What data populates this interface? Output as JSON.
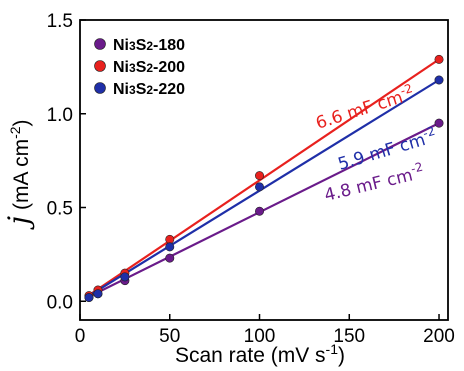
{
  "chart_data": {
    "type": "scatter",
    "x_range": [
      0,
      205
    ],
    "y_range": [
      -0.1,
      1.5
    ],
    "x_ticks": [
      "0",
      "50",
      "100",
      "150",
      "200"
    ],
    "y_ticks": [
      "0.0",
      "0.5",
      "1.0",
      "1.5"
    ],
    "xlabel": {
      "main": "Scan rate (mV s",
      "sup": "-1",
      "end": ")"
    },
    "ylabel": {
      "italic": "j",
      "main": " (mA cm",
      "sup": "-2",
      "end": ")"
    },
    "legend_position": "top-left",
    "series": [
      {
        "name": {
          "pre": "Ni",
          "sub1": "3",
          "mid": "S",
          "sub2": "2",
          "post": "-180"
        },
        "color": "#6a1b8a",
        "x": [
          5,
          10,
          25,
          50,
          100,
          200
        ],
        "y": [
          0.02,
          0.04,
          0.11,
          0.23,
          0.48,
          0.95
        ],
        "fit": [
          0.0,
          0.95
        ],
        "annotation": {
          "main": "4.8 mF cm",
          "sup": "-2"
        }
      },
      {
        "name": {
          "pre": "Ni",
          "sub1": "3",
          "mid": "S",
          "sub2": "2",
          "post": "-200"
        },
        "color": "#e8211e",
        "x": [
          5,
          10,
          25,
          50,
          100,
          200
        ],
        "y": [
          0.03,
          0.06,
          0.15,
          0.33,
          0.67,
          1.29
        ],
        "fit": [
          0.0,
          1.29
        ],
        "annotation": {
          "main": "6.6 mF cm",
          "sup": "-2"
        }
      },
      {
        "name": {
          "pre": "Ni",
          "sub1": "3",
          "mid": "S",
          "sub2": "2",
          "post": "-220"
        },
        "color": "#1f2fa8",
        "x": [
          5,
          10,
          25,
          50,
          100,
          200
        ],
        "y": [
          0.02,
          0.04,
          0.13,
          0.29,
          0.61,
          1.18
        ],
        "fit": [
          0.0,
          1.18
        ],
        "annotation": {
          "main": "5.9 mF cm",
          "sup": "-2"
        }
      }
    ]
  }
}
